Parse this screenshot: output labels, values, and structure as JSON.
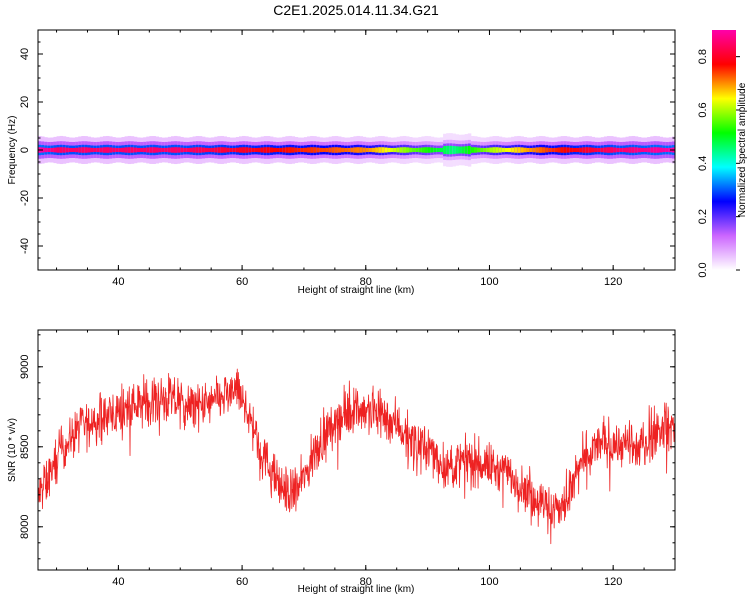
{
  "title": "C2E1.2025.014.11.34.G21",
  "chart_data": [
    {
      "type": "heatmap",
      "xlabel": "Height of straight line (km)",
      "ylabel": "Frequency (Hz)",
      "xlim": [
        27,
        130
      ],
      "ylim": [
        -50,
        50
      ],
      "x_ticks": [
        "40",
        "60",
        "80",
        "100",
        "120"
      ],
      "y_ticks": [
        "40",
        "20",
        "0",
        "-20",
        "-40"
      ],
      "colorbar": {
        "label": "Normalized spectral amplitude",
        "range": [
          0,
          0.9
        ],
        "ticks": [
          "0.0",
          "0.2",
          "0.4",
          "0.6",
          "0.8"
        ],
        "colors": [
          "#ffffff",
          "#cc66ff",
          "#0000ff",
          "#00ffff",
          "#00ff00",
          "#ffff00",
          "#ff0000",
          "#ff00aa"
        ]
      },
      "band": {
        "center_frequency": 0,
        "half_width_hz": [
          1.0,
          2.0,
          3.5,
          5.5
        ],
        "intensity_along_x": [
          {
            "x": 27,
            "peak": 0.9
          },
          {
            "x": 30,
            "peak": 0.85
          },
          {
            "x": 40,
            "peak": 0.85
          },
          {
            "x": 50,
            "peak": 0.85
          },
          {
            "x": 60,
            "peak": 0.8
          },
          {
            "x": 70,
            "peak": 0.75
          },
          {
            "x": 80,
            "peak": 0.7
          },
          {
            "x": 88,
            "peak": 0.55
          },
          {
            "x": 94,
            "peak": 0.45
          },
          {
            "x": 100,
            "peak": 0.6
          },
          {
            "x": 110,
            "peak": 0.75
          },
          {
            "x": 120,
            "peak": 0.85
          },
          {
            "x": 130,
            "peak": 0.9
          }
        ]
      }
    },
    {
      "type": "line",
      "xlabel": "Height of straight line (km)",
      "ylabel": "SNR (10 * v/v)",
      "xlim": [
        27,
        130
      ],
      "ylim": [
        7730,
        9230
      ],
      "x_ticks": [
        "40",
        "60",
        "80",
        "100",
        "120"
      ],
      "y_ticks": [
        "9000",
        "8500",
        "8000"
      ],
      "series": [
        {
          "color": "#ee2222",
          "x": [
            27,
            29,
            31,
            34,
            37,
            40,
            43,
            46,
            49,
            52,
            55,
            57,
            59,
            61,
            63,
            65,
            67,
            69,
            71,
            73,
            76,
            79,
            82,
            85,
            88,
            91,
            93,
            95,
            97,
            100,
            103,
            106,
            108,
            110,
            112,
            115,
            118,
            121,
            124,
            127,
            130
          ],
          "values": [
            8180,
            8330,
            8500,
            8620,
            8680,
            8720,
            8760,
            8800,
            8790,
            8740,
            8770,
            8810,
            8860,
            8720,
            8480,
            8320,
            8220,
            8230,
            8390,
            8560,
            8700,
            8740,
            8720,
            8650,
            8520,
            8460,
            8360,
            8400,
            8420,
            8380,
            8330,
            8240,
            8170,
            8100,
            8130,
            8400,
            8530,
            8520,
            8480,
            8600,
            8640
          ]
        }
      ],
      "noise_amplitude": 90
    }
  ]
}
